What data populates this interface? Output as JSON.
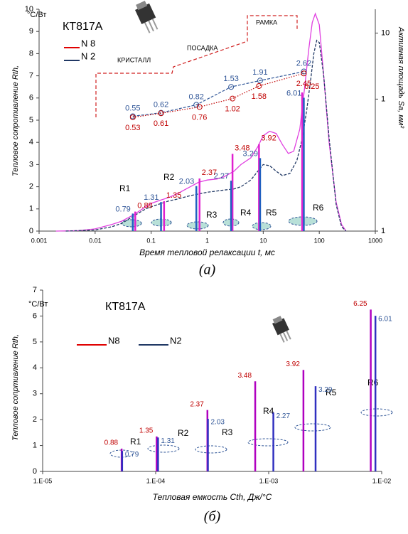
{
  "chart_data": [
    {
      "type": "line",
      "title": "КТ817А",
      "caption": "(a)",
      "x_label": "Время тепловой релаксации t,  мс",
      "y_label": "Тепловое сопротивление Rth,",
      "y_unit": "°C/Вт",
      "y2_label": "Активная площадь Sa, мм²",
      "xscale": "log",
      "xlim": [
        0.001,
        1000
      ],
      "xticks": [
        0.001,
        0.01,
        0.1,
        1,
        10,
        100,
        1000
      ],
      "ylim": [
        0,
        10
      ],
      "yticks": [
        0,
        1,
        2,
        3,
        4,
        5,
        6,
        7,
        8,
        9,
        10
      ],
      "y2scale": "log",
      "y2lim": [
        0.01,
        23
      ],
      "y2ticks": [
        {
          "value": 0.01,
          "label": "1"
        },
        1,
        10
      ],
      "annotations": [
        "КРИСТАЛЛ",
        "ПОСАДКА",
        "РАМКА"
      ],
      "regions": [
        "R1",
        "R2",
        "R3",
        "R4",
        "R5",
        "R6"
      ],
      "series": [
        {
          "name": "N 8",
          "legend_color": "#e00000",
          "color": "#e040e0",
          "kind": "curve",
          "x": [
            0.002,
            0.005,
            0.01,
            0.02,
            0.03,
            0.05,
            0.08,
            0.1,
            0.15,
            0.2,
            0.3,
            0.5,
            0.7,
            1,
            1.5,
            2,
            3,
            4,
            6,
            8,
            10,
            13,
            17,
            22,
            28,
            35,
            45,
            55,
            65,
            75,
            85,
            100,
            120,
            150,
            200,
            250,
            300
          ],
          "values": [
            0,
            0.02,
            0.1,
            0.3,
            0.45,
            0.75,
            1.1,
            1.25,
            1.4,
            1.5,
            1.7,
            2.0,
            2.2,
            2.3,
            2.35,
            2.45,
            2.7,
            3.0,
            3.3,
            3.8,
            4.3,
            4.5,
            4.4,
            3.9,
            3.5,
            3.6,
            4.6,
            6.5,
            8.2,
            9.4,
            9.8,
            9.3,
            7.0,
            4.0,
            1.3,
            0.3,
            0
          ]
        },
        {
          "name": "N 2",
          "legend_color": "#203864",
          "color": "#203864",
          "kind": "curve",
          "dash": true,
          "x": [
            0.003,
            0.01,
            0.02,
            0.03,
            0.05,
            0.08,
            0.1,
            0.2,
            0.3,
            0.5,
            1,
            2,
            3,
            4,
            6,
            8,
            10,
            13,
            17,
            22,
            30,
            40,
            50,
            60,
            70,
            80,
            90,
            100,
            120,
            150,
            200,
            250,
            300
          ],
          "values": [
            0,
            0.05,
            0.2,
            0.35,
            0.7,
            1.0,
            1.1,
            1.35,
            1.45,
            1.6,
            1.75,
            1.85,
            1.9,
            2.0,
            2.3,
            2.7,
            3.0,
            2.95,
            2.7,
            2.5,
            2.6,
            3.2,
            4.2,
            5.5,
            6.8,
            8.0,
            8.6,
            8.5,
            7.0,
            4.2,
            1.2,
            0.2,
            0
          ]
        },
        {
          "kind": "bars",
          "color": "#e020d0",
          "label_color": "#c00000",
          "x": [
            0.052,
            0.17,
            0.73,
            2.83,
            8.4,
            49.5
          ],
          "values": [
            0.88,
            1.35,
            2.37,
            3.48,
            3.92,
            6.25
          ]
        },
        {
          "kind": "bars",
          "color": "#2060c0",
          "label_color": "#2f5597",
          "x": [
            0.047,
            0.15,
            0.64,
            2.67,
            8.8,
            53
          ],
          "values": [
            0.79,
            1.31,
            2.03,
            2.27,
            3.29,
            6.01
          ]
        },
        {
          "kind": "area",
          "axis": "y2",
          "color": "#2f5597",
          "x": [
            0.047,
            0.15,
            0.64,
            2.67,
            8.8,
            53
          ],
          "values": [
            0.55,
            0.62,
            0.82,
            1.53,
            1.91,
            2.62
          ]
        },
        {
          "kind": "area",
          "axis": "y2",
          "color": "#c00000",
          "dotted": true,
          "x": [
            0.047,
            0.15,
            0.73,
            2.83,
            8.4,
            53
          ],
          "values": [
            0.53,
            0.61,
            0.76,
            1.02,
            1.58,
            2.45
          ]
        }
      ]
    },
    {
      "type": "bar",
      "title": "КТ817А",
      "caption": "(б)",
      "x_label": "Тепловая емкость Cth, Дж/°C",
      "y_label": "Тепловое сопртивление Rth,",
      "y_unit": "°C/Вт",
      "xscale": "log",
      "xlim": [
        1e-05,
        0.01
      ],
      "xticks": [
        {
          "value": 1e-05,
          "label": "1.E-05"
        },
        {
          "value": 0.0001,
          "label": "1.E-04"
        },
        {
          "value": 0.001,
          "label": "1.E-03"
        },
        {
          "value": 0.01,
          "label": "1.E-02"
        }
      ],
      "ylim": [
        0,
        7
      ],
      "yticks": [
        0,
        1,
        2,
        3,
        4,
        5,
        6,
        7
      ],
      "regions": [
        "R1",
        "R2",
        "R3",
        "R4",
        "R5",
        "R6"
      ],
      "series": [
        {
          "name": "N8",
          "legend_color": "#e00000",
          "color": "#b000c0",
          "label_color": "#c00000",
          "x": [
            5e-05,
            0.000102,
            0.000287,
            0.00076,
            0.00203,
            0.008
          ],
          "values": [
            0.88,
            1.35,
            2.37,
            3.48,
            3.92,
            6.25
          ]
        },
        {
          "name": "N2",
          "legend_color": "#203864",
          "color": "#3030c0",
          "label_color": "#2f5597",
          "x": [
            5.05e-05,
            0.000105,
            0.00029,
            0.0011,
            0.0026,
            0.0088
          ],
          "values": [
            0.79,
            1.31,
            2.03,
            2.27,
            3.29,
            6.01
          ]
        }
      ]
    }
  ]
}
